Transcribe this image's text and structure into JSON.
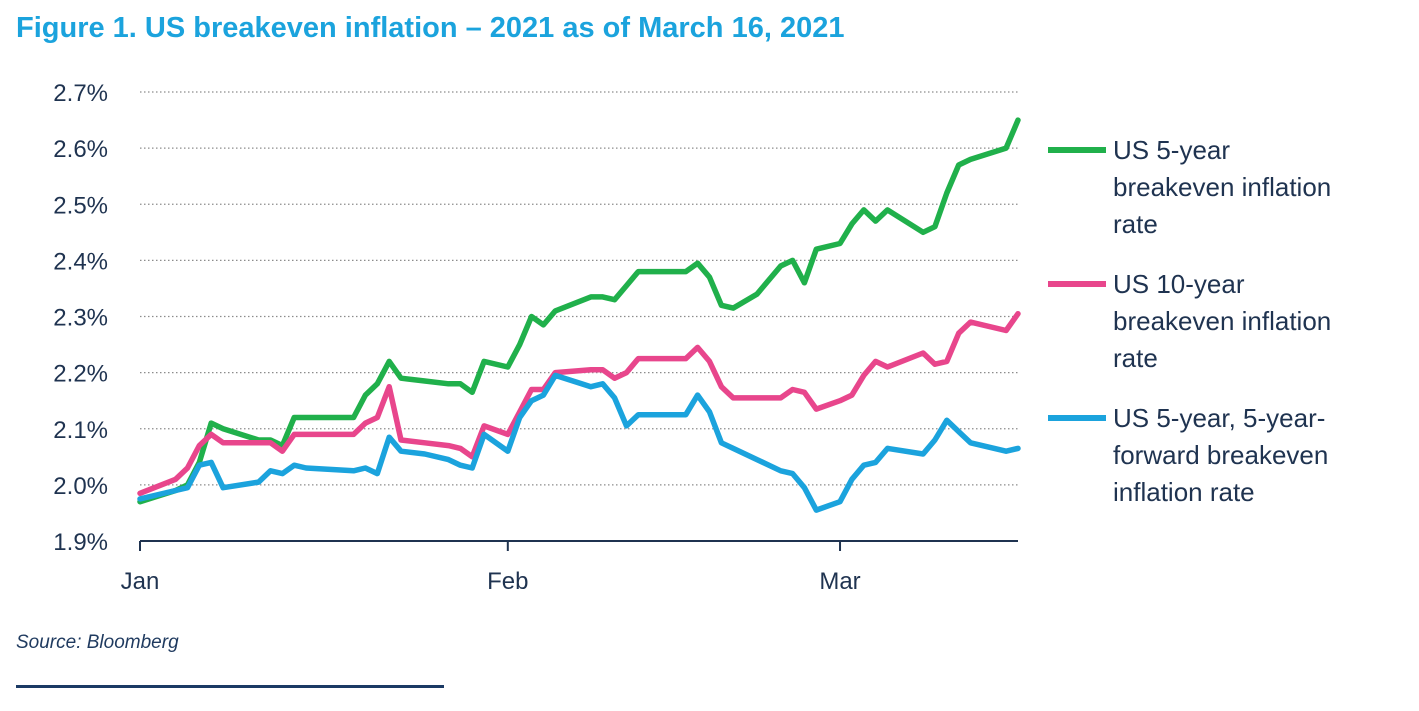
{
  "title": "Figure 1. US breakeven inflation – 2021 as of March 16, 2021",
  "source": "Source: Bloomberg",
  "chart_data": {
    "type": "line",
    "ylim": [
      1.9,
      2.7
    ],
    "y_ticks": [
      {
        "value": 2.7,
        "label": "2.7%"
      },
      {
        "value": 2.6,
        "label": "2.6%"
      },
      {
        "value": 2.5,
        "label": "2.5%"
      },
      {
        "value": 2.4,
        "label": "2.4%"
      },
      {
        "value": 2.3,
        "label": "2.3%"
      },
      {
        "value": 2.2,
        "label": "2.2%"
      },
      {
        "value": 2.1,
        "label": "2.1%"
      },
      {
        "value": 2.0,
        "label": "2.0%"
      },
      {
        "value": 1.9,
        "label": "1.9%"
      }
    ],
    "x_domain": [
      "2021-01-01",
      "2021-03-16"
    ],
    "x_ticks": [
      {
        "date": "2021-01-01",
        "label": "Jan"
      },
      {
        "date": "2021-02-01",
        "label": "Feb"
      },
      {
        "date": "2021-03-01",
        "label": "Mar"
      }
    ],
    "grid": "horizontal-dotted",
    "legend_position": "right",
    "series": [
      {
        "name": "US 5-year breakeven inflation rate",
        "legend_lines": [
          "US 5-year",
          "breakeven inflation",
          "rate"
        ],
        "color": "#20b04b",
        "points": [
          [
            "2021-01-01",
            1.97
          ],
          [
            "2021-01-04",
            1.99
          ],
          [
            "2021-01-05",
            2.0
          ],
          [
            "2021-01-06",
            2.04
          ],
          [
            "2021-01-07",
            2.11
          ],
          [
            "2021-01-08",
            2.1
          ],
          [
            "2021-01-11",
            2.08
          ],
          [
            "2021-01-12",
            2.08
          ],
          [
            "2021-01-13",
            2.07
          ],
          [
            "2021-01-14",
            2.12
          ],
          [
            "2021-01-15",
            2.12
          ],
          [
            "2021-01-19",
            2.12
          ],
          [
            "2021-01-20",
            2.16
          ],
          [
            "2021-01-21",
            2.18
          ],
          [
            "2021-01-22",
            2.22
          ],
          [
            "2021-01-23",
            2.19
          ],
          [
            "2021-01-25",
            2.185
          ],
          [
            "2021-01-27",
            2.18
          ],
          [
            "2021-01-28",
            2.18
          ],
          [
            "2021-01-29",
            2.165
          ],
          [
            "2021-01-30",
            2.22
          ],
          [
            "2021-02-01",
            2.21
          ],
          [
            "2021-02-02",
            2.25
          ],
          [
            "2021-02-03",
            2.3
          ],
          [
            "2021-02-04",
            2.285
          ],
          [
            "2021-02-05",
            2.31
          ],
          [
            "2021-02-08",
            2.335
          ],
          [
            "2021-02-09",
            2.335
          ],
          [
            "2021-02-10",
            2.33
          ],
          [
            "2021-02-11",
            2.355
          ],
          [
            "2021-02-12",
            2.38
          ],
          [
            "2021-02-16",
            2.38
          ],
          [
            "2021-02-17",
            2.395
          ],
          [
            "2021-02-18",
            2.37
          ],
          [
            "2021-02-19",
            2.32
          ],
          [
            "2021-02-20",
            2.315
          ],
          [
            "2021-02-22",
            2.34
          ],
          [
            "2021-02-24",
            2.39
          ],
          [
            "2021-02-25",
            2.4
          ],
          [
            "2021-02-26",
            2.36
          ],
          [
            "2021-02-27",
            2.42
          ],
          [
            "2021-03-01",
            2.43
          ],
          [
            "2021-03-02",
            2.465
          ],
          [
            "2021-03-03",
            2.49
          ],
          [
            "2021-03-04",
            2.47
          ],
          [
            "2021-03-05",
            2.49
          ],
          [
            "2021-03-08",
            2.45
          ],
          [
            "2021-03-09",
            2.46
          ],
          [
            "2021-03-10",
            2.52
          ],
          [
            "2021-03-11",
            2.57
          ],
          [
            "2021-03-12",
            2.58
          ],
          [
            "2021-03-15",
            2.6
          ],
          [
            "2021-03-16",
            2.65
          ]
        ]
      },
      {
        "name": "US 10-year breakeven inflation rate",
        "legend_lines": [
          "US 10-year",
          "breakeven inflation",
          "rate"
        ],
        "color": "#e8468c",
        "points": [
          [
            "2021-01-01",
            1.985
          ],
          [
            "2021-01-04",
            2.01
          ],
          [
            "2021-01-05",
            2.03
          ],
          [
            "2021-01-06",
            2.07
          ],
          [
            "2021-01-07",
            2.09
          ],
          [
            "2021-01-08",
            2.075
          ],
          [
            "2021-01-11",
            2.075
          ],
          [
            "2021-01-12",
            2.075
          ],
          [
            "2021-01-13",
            2.06
          ],
          [
            "2021-01-14",
            2.09
          ],
          [
            "2021-01-15",
            2.09
          ],
          [
            "2021-01-19",
            2.09
          ],
          [
            "2021-01-20",
            2.11
          ],
          [
            "2021-01-21",
            2.12
          ],
          [
            "2021-01-22",
            2.175
          ],
          [
            "2021-01-23",
            2.08
          ],
          [
            "2021-01-25",
            2.075
          ],
          [
            "2021-01-27",
            2.07
          ],
          [
            "2021-01-28",
            2.065
          ],
          [
            "2021-01-29",
            2.05
          ],
          [
            "2021-01-30",
            2.105
          ],
          [
            "2021-02-01",
            2.09
          ],
          [
            "2021-02-02",
            2.13
          ],
          [
            "2021-02-03",
            2.17
          ],
          [
            "2021-02-04",
            2.17
          ],
          [
            "2021-02-05",
            2.2
          ],
          [
            "2021-02-08",
            2.205
          ],
          [
            "2021-02-09",
            2.205
          ],
          [
            "2021-02-10",
            2.19
          ],
          [
            "2021-02-11",
            2.2
          ],
          [
            "2021-02-12",
            2.225
          ],
          [
            "2021-02-16",
            2.225
          ],
          [
            "2021-02-17",
            2.245
          ],
          [
            "2021-02-18",
            2.22
          ],
          [
            "2021-02-19",
            2.175
          ],
          [
            "2021-02-20",
            2.155
          ],
          [
            "2021-02-22",
            2.155
          ],
          [
            "2021-02-24",
            2.155
          ],
          [
            "2021-02-25",
            2.17
          ],
          [
            "2021-02-26",
            2.165
          ],
          [
            "2021-02-27",
            2.135
          ],
          [
            "2021-03-01",
            2.15
          ],
          [
            "2021-03-02",
            2.16
          ],
          [
            "2021-03-03",
            2.195
          ],
          [
            "2021-03-04",
            2.22
          ],
          [
            "2021-03-05",
            2.21
          ],
          [
            "2021-03-08",
            2.235
          ],
          [
            "2021-03-09",
            2.215
          ],
          [
            "2021-03-10",
            2.22
          ],
          [
            "2021-03-11",
            2.27
          ],
          [
            "2021-03-12",
            2.29
          ],
          [
            "2021-03-15",
            2.275
          ],
          [
            "2021-03-16",
            2.305
          ]
        ]
      },
      {
        "name": "US 5-year, 5-year-forward breakeven inflation rate",
        "legend_lines": [
          "US 5-year, 5-year-",
          "forward breakeven",
          "inflation rate"
        ],
        "color": "#1ba3dd",
        "points": [
          [
            "2021-01-01",
            1.975
          ],
          [
            "2021-01-04",
            1.99
          ],
          [
            "2021-01-05",
            1.995
          ],
          [
            "2021-01-06",
            2.035
          ],
          [
            "2021-01-07",
            2.04
          ],
          [
            "2021-01-08",
            1.995
          ],
          [
            "2021-01-11",
            2.005
          ],
          [
            "2021-01-12",
            2.025
          ],
          [
            "2021-01-13",
            2.02
          ],
          [
            "2021-01-14",
            2.035
          ],
          [
            "2021-01-15",
            2.03
          ],
          [
            "2021-01-19",
            2.025
          ],
          [
            "2021-01-20",
            2.03
          ],
          [
            "2021-01-21",
            2.02
          ],
          [
            "2021-01-22",
            2.085
          ],
          [
            "2021-01-23",
            2.06
          ],
          [
            "2021-01-25",
            2.055
          ],
          [
            "2021-01-27",
            2.045
          ],
          [
            "2021-01-28",
            2.035
          ],
          [
            "2021-01-29",
            2.03
          ],
          [
            "2021-01-30",
            2.09
          ],
          [
            "2021-02-01",
            2.06
          ],
          [
            "2021-02-02",
            2.12
          ],
          [
            "2021-02-03",
            2.15
          ],
          [
            "2021-02-04",
            2.16
          ],
          [
            "2021-02-05",
            2.195
          ],
          [
            "2021-02-08",
            2.175
          ],
          [
            "2021-02-09",
            2.18
          ],
          [
            "2021-02-10",
            2.155
          ],
          [
            "2021-02-11",
            2.105
          ],
          [
            "2021-02-12",
            2.125
          ],
          [
            "2021-02-16",
            2.125
          ],
          [
            "2021-02-17",
            2.16
          ],
          [
            "2021-02-18",
            2.13
          ],
          [
            "2021-02-19",
            2.075
          ],
          [
            "2021-02-20",
            2.065
          ],
          [
            "2021-02-22",
            2.045
          ],
          [
            "2021-02-24",
            2.025
          ],
          [
            "2021-02-25",
            2.02
          ],
          [
            "2021-02-26",
            1.995
          ],
          [
            "2021-02-27",
            1.955
          ],
          [
            "2021-03-01",
            1.97
          ],
          [
            "2021-03-02",
            2.01
          ],
          [
            "2021-03-03",
            2.035
          ],
          [
            "2021-03-04",
            2.04
          ],
          [
            "2021-03-05",
            2.065
          ],
          [
            "2021-03-08",
            2.055
          ],
          [
            "2021-03-09",
            2.08
          ],
          [
            "2021-03-10",
            2.115
          ],
          [
            "2021-03-11",
            2.095
          ],
          [
            "2021-03-12",
            2.075
          ],
          [
            "2021-03-15",
            2.06
          ],
          [
            "2021-03-16",
            2.065
          ]
        ]
      }
    ]
  }
}
